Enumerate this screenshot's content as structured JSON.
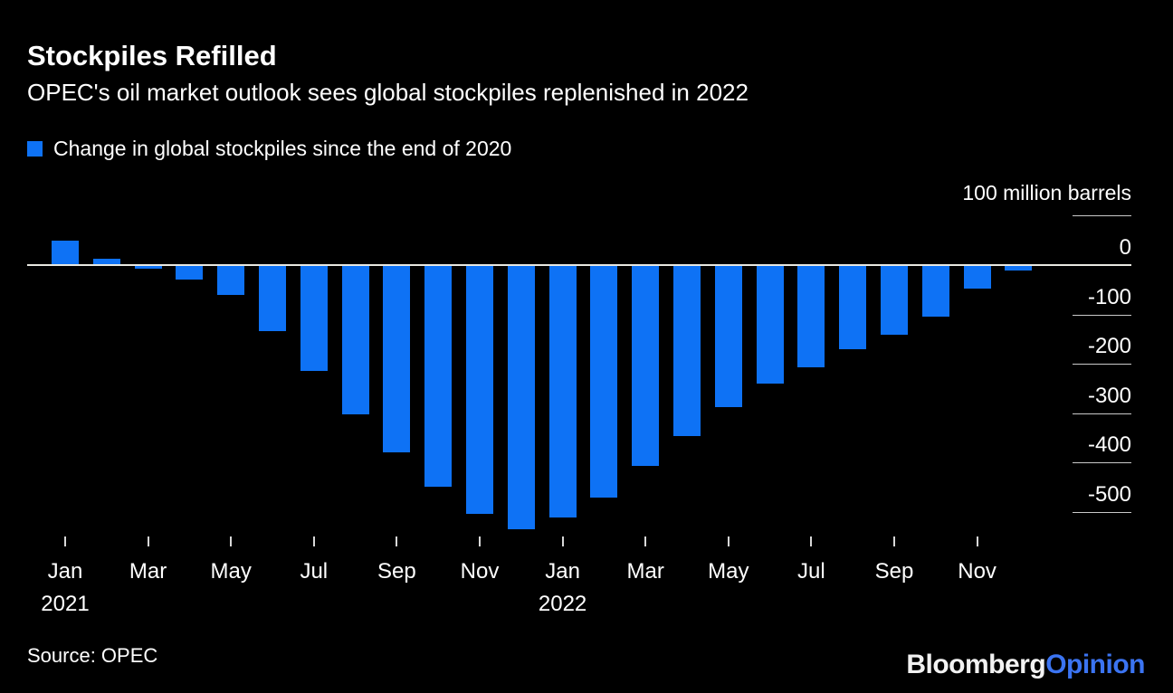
{
  "header": {
    "title": "Stockpiles Refilled",
    "subtitle": "OPEC's oil market outlook sees global stockpiles replenished in 2022"
  },
  "legend": {
    "label": "Change in global stockpiles since the end of 2020",
    "swatch_color": "#0E72F5"
  },
  "axis": {
    "unit_label": "100 million barrels"
  },
  "chart_data": {
    "type": "bar",
    "title": "Stockpiles Refilled",
    "series_name": "Change in global stockpiles since the end of 2020",
    "categories": [
      "Jan 2021",
      "Feb 2021",
      "Mar 2021",
      "Apr 2021",
      "May 2021",
      "Jun 2021",
      "Jul 2021",
      "Aug 2021",
      "Sep 2021",
      "Oct 2021",
      "Nov 2021",
      "Dec 2021",
      "Jan 2022",
      "Feb 2022",
      "Mar 2022",
      "Apr 2022",
      "May 2022",
      "Jun 2022",
      "Jul 2022",
      "Aug 2022",
      "Sep 2022",
      "Oct 2022",
      "Nov 2022",
      "Dec 2022"
    ],
    "values": [
      50,
      13,
      -8,
      -29,
      -60,
      -134,
      -214,
      -302,
      -380,
      -450,
      -505,
      -536,
      -511,
      -472,
      -407,
      -346,
      -288,
      -240,
      -207,
      -171,
      -141,
      -104,
      -48,
      -11
    ],
    "ylabel": "100 million barrels",
    "ylim": [
      -560,
      100
    ],
    "y_gridlines": [
      100,
      0,
      -100,
      -200,
      -300,
      -400,
      -500
    ],
    "y_tick_labels": [
      "0",
      "-100",
      "-200",
      "-300",
      "-400",
      "-500"
    ],
    "x_tick_labels": [
      "Jan",
      "Mar",
      "May",
      "Jul",
      "Sep",
      "Nov",
      "Jan",
      "Mar",
      "May",
      "Jul",
      "Sep",
      "Nov"
    ],
    "x_year_labels": [
      {
        "text": "2021",
        "bar_index": 0
      },
      {
        "text": "2022",
        "bar_index": 12
      }
    ],
    "bar_color": "#0E72F5",
    "grid": "right-side ticks only, zero baseline full width",
    "legend_position": "top-left"
  },
  "footer": {
    "source": "Source: OPEC",
    "logo": {
      "part1": "Bloomberg",
      "part2": "Opinion",
      "part2_color": "#3B74F2"
    }
  }
}
